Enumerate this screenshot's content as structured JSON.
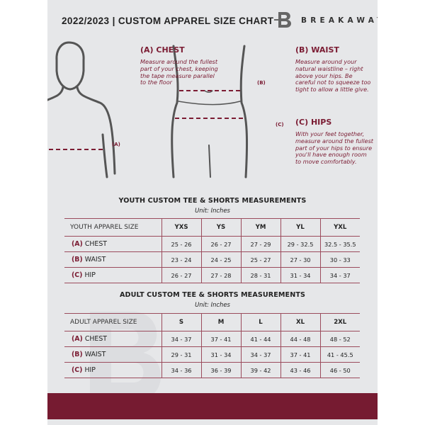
{
  "header": {
    "title": "2022/2023  |  CUSTOM APPAREL SIZE CHART",
    "brand": "BREAKAWAY",
    "logo_letter": "B"
  },
  "measures": {
    "chest": {
      "title": "(A) CHEST",
      "desc": "Measure around the fullest part of your chest, keeping the tape measure parallel to the floor",
      "marker": "(A)"
    },
    "waist": {
      "title": "(B) WAIST",
      "desc": "Measure around your natural waistline – right above your hips. Be careful not to squeeze too tight to allow a little give.",
      "marker": "(B)"
    },
    "hips": {
      "title": "(C) HIPS",
      "desc": "With your feet together, measure around the fullest part of your hips to ensure you'll have enough room to move comfortably.",
      "marker": "(C)"
    }
  },
  "youth": {
    "title": "YOUTH CUSTOM TEE & SHORTS MEASUREMENTS",
    "unit": "Unit: Inches",
    "header": "YOUTH APPAREL SIZE",
    "sizes": [
      "YXS",
      "YS",
      "YM",
      "YL",
      "YXL"
    ],
    "rows": [
      {
        "letter": "(A)",
        "name": "CHEST",
        "values": [
          "25 - 26",
          "26 - 27",
          "27 - 29",
          "29 - 32.5",
          "32.5 - 35.5"
        ]
      },
      {
        "letter": "(B)",
        "name": "WAIST",
        "values": [
          "23 - 24",
          "24 - 25",
          "25 - 27",
          "27 - 30",
          "30 - 33"
        ]
      },
      {
        "letter": "(C)",
        "name": "HIP",
        "values": [
          "26 - 27",
          "27 - 28",
          "28 - 31",
          "31 - 34",
          "34 - 37"
        ]
      }
    ]
  },
  "adult": {
    "title": "ADULT CUSTOM TEE & SHORTS MEASUREMENTS",
    "unit": "Unit: Inches",
    "header": "ADULT APPAREL SIZE",
    "sizes": [
      "S",
      "M",
      "L",
      "XL",
      "2XL"
    ],
    "rows": [
      {
        "letter": "(A)",
        "name": "CHEST",
        "values": [
          "34 - 37",
          "37 - 41",
          "41 - 44",
          "44 - 48",
          "48 - 52"
        ]
      },
      {
        "letter": "(B)",
        "name": "WAIST",
        "values": [
          "29 - 31",
          "31 - 34",
          "34 - 37",
          "37 - 41",
          "41 - 45.5"
        ]
      },
      {
        "letter": "(C)",
        "name": "HIP",
        "values": [
          "34 - 36",
          "36 - 39",
          "39 - 42",
          "43 - 46",
          "46 - 50"
        ]
      }
    ]
  },
  "colors": {
    "accent": "#761b31",
    "background": "#e6e7e9"
  }
}
